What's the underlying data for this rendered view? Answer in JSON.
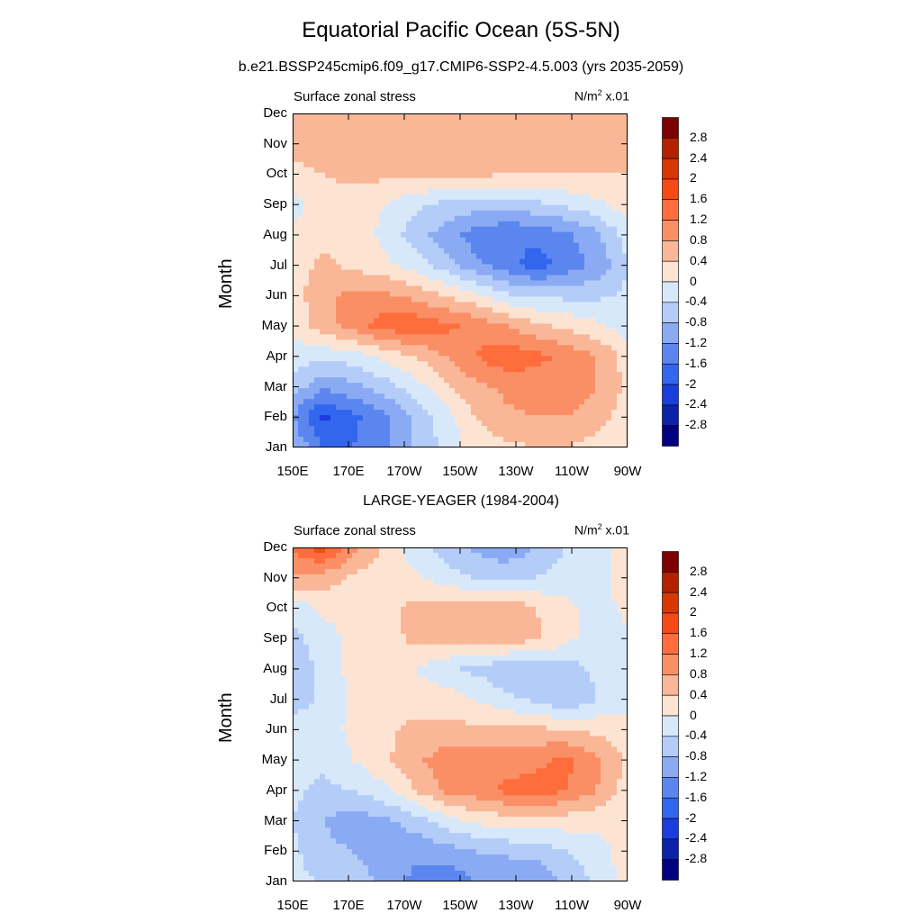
{
  "title": "Equatorial Pacific Ocean (5S-5N)",
  "chart_data": [
    {
      "type": "heatmap",
      "subtitle": "b.e21.BSSP245cmip6.f09_g17.CMIP6-SSP2-4.5.003 (yrs 2035-2059)",
      "panel_left_label": "Surface zonal stress",
      "units_label": "N/m",
      "units_sup": "2",
      "units_suffix": " x.01",
      "ylabel": "Month",
      "y_ticks": [
        "Jan",
        "Feb",
        "Mar",
        "Apr",
        "May",
        "Jun",
        "Jul",
        "Aug",
        "Sep",
        "Oct",
        "Nov",
        "Dec"
      ],
      "x_ticks": [
        "150E",
        "170E",
        "170W",
        "150W",
        "130W",
        "110W",
        "90W"
      ],
      "x_range": [
        150,
        270
      ],
      "y_range": [
        1,
        12
      ],
      "grid": [
        [
          -0.8,
          -1.6,
          -1.6,
          -1.3,
          -0.7,
          -0.3,
          0.2,
          0.3,
          0.4,
          0.4,
          0.2,
          0.1
        ],
        [
          -1.2,
          -2.1,
          -1.7,
          -1.3,
          -0.7,
          -0.2,
          0.4,
          0.7,
          0.8,
          0.8,
          0.6,
          0.2
        ],
        [
          -0.6,
          -1.1,
          -0.9,
          -0.6,
          -0.2,
          0.3,
          0.7,
          0.9,
          1.0,
          1.1,
          0.8,
          0.3
        ],
        [
          -0.2,
          -0.3,
          -0.2,
          0.1,
          0.4,
          0.8,
          1.2,
          1.5,
          1.3,
          1.1,
          0.8,
          0.2
        ],
        [
          0.1,
          0.6,
          1.0,
          1.4,
          1.5,
          1.3,
          1.1,
          0.8,
          0.5,
          0.3,
          0.1,
          -0.2
        ],
        [
          0.2,
          0.7,
          0.9,
          0.9,
          0.7,
          0.4,
          0.1,
          -0.3,
          -0.5,
          -0.5,
          -0.5,
          -0.3
        ],
        [
          0.2,
          0.5,
          0.3,
          0.1,
          -0.2,
          -0.6,
          -1.1,
          -1.4,
          -1.8,
          -1.4,
          -1.1,
          -0.4
        ],
        [
          0.1,
          0.3,
          0.2,
          -0.1,
          -0.6,
          -1.0,
          -1.4,
          -1.6,
          -1.5,
          -1.3,
          -0.9,
          -0.2
        ],
        [
          -0.2,
          0.3,
          0.2,
          0.0,
          -0.3,
          -0.5,
          -0.6,
          -0.6,
          -0.5,
          -0.3,
          -0.1,
          0.2
        ],
        [
          0.2,
          0.4,
          0.5,
          0.5,
          0.5,
          0.5,
          0.5,
          0.4,
          0.4,
          0.4,
          0.4,
          0.4
        ],
        [
          0.6,
          0.7,
          0.7,
          0.6,
          0.6,
          0.6,
          0.6,
          0.5,
          0.5,
          0.5,
          0.5,
          0.5
        ],
        [
          0.6,
          0.5,
          0.5,
          0.5,
          0.5,
          0.5,
          0.5,
          0.5,
          0.5,
          0.5,
          0.5,
          0.5
        ]
      ]
    },
    {
      "type": "heatmap",
      "subtitle": "LARGE-YEAGER (1984-2004)",
      "panel_left_label": "Surface zonal stress",
      "units_label": "N/m",
      "units_sup": "2",
      "units_suffix": " x.01",
      "ylabel": "Month",
      "y_ticks": [
        "Jan",
        "Feb",
        "Mar",
        "Apr",
        "May",
        "Jun",
        "Jul",
        "Aug",
        "Sep",
        "Oct",
        "Nov",
        "Dec"
      ],
      "x_ticks": [
        "150E",
        "170E",
        "170W",
        "150W",
        "130W",
        "110W",
        "90W"
      ],
      "x_range": [
        150,
        270
      ],
      "y_range": [
        1,
        12
      ],
      "grid": [
        [
          -0.3,
          -0.4,
          -0.6,
          -0.9,
          -1.3,
          -1.5,
          -1.2,
          -1.2,
          -1.2,
          -0.7,
          -0.3,
          0.2
        ],
        [
          -0.3,
          -0.7,
          -0.8,
          -1.0,
          -1.1,
          -1.0,
          -0.8,
          -0.7,
          -0.6,
          -0.4,
          -0.2,
          0.2
        ],
        [
          -0.4,
          -0.8,
          -1.0,
          -0.9,
          -0.6,
          -0.2,
          0.1,
          0.2,
          0.2,
          0.2,
          0.1,
          0.2
        ],
        [
          -0.3,
          -0.5,
          -0.4,
          -0.1,
          0.4,
          0.9,
          1.0,
          1.3,
          1.4,
          1.2,
          0.8,
          0.2
        ],
        [
          -0.2,
          -0.3,
          0.0,
          0.3,
          0.7,
          1.0,
          1.0,
          1.0,
          1.1,
          1.3,
          0.9,
          0.3
        ],
        [
          -0.2,
          -0.2,
          0.1,
          0.3,
          0.5,
          0.5,
          0.5,
          0.5,
          0.5,
          0.4,
          0.3,
          0.1
        ],
        [
          -0.6,
          -0.3,
          0.1,
          0.2,
          0.2,
          0.2,
          0.0,
          -0.3,
          -0.5,
          -0.8,
          -0.4,
          -0.1
        ],
        [
          -0.8,
          -0.2,
          0.1,
          0.2,
          0.0,
          -0.3,
          -0.5,
          -0.7,
          -0.7,
          -0.6,
          -0.3,
          -0.1
        ],
        [
          -0.5,
          -0.2,
          0.1,
          0.2,
          0.5,
          0.6,
          0.6,
          0.6,
          0.5,
          0.1,
          -0.2,
          -0.1
        ],
        [
          -0.3,
          0.1,
          0.2,
          0.3,
          0.5,
          0.6,
          0.6,
          0.8,
          0.4,
          0.1,
          -0.2,
          0.1
        ],
        [
          0.8,
          0.6,
          0.3,
          0.2,
          0.1,
          -0.2,
          -0.4,
          -0.5,
          -0.4,
          -0.2,
          -0.2,
          0.3
        ],
        [
          1.3,
          1.8,
          1.0,
          0.3,
          -0.2,
          -0.6,
          -0.9,
          -1.1,
          -0.8,
          -0.4,
          -0.2,
          0.3
        ]
      ]
    }
  ],
  "colorbar": {
    "levels": [
      "2.8",
      "2.4",
      "2",
      "1.6",
      "1.2",
      "0.8",
      "0.4",
      "0",
      "-0.4",
      "-0.8",
      "-1.2",
      "-1.6",
      "-2",
      "-2.4",
      "-2.8"
    ],
    "colors": [
      "#7f0000",
      "#b32100",
      "#d93600",
      "#f54a14",
      "#ff6d3d",
      "#fa8f66",
      "#f9b798",
      "#fde4d2",
      "#d8e8fb",
      "#b4ccf8",
      "#8aabf4",
      "#5c86ef",
      "#3366ee",
      "#1a3ddd",
      "#0c22aa",
      "#000080"
    ]
  }
}
